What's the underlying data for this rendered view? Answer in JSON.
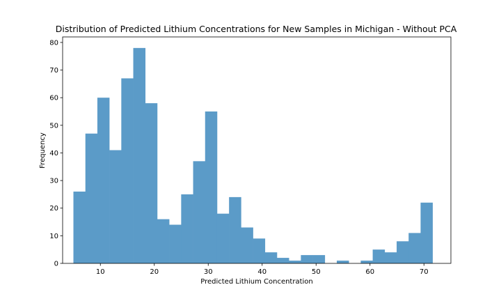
{
  "chart_data": {
    "type": "bar",
    "subtype": "histogram",
    "title": "Distribution of Predicted Lithium Concentrations for New Samples in Michigan - Without PCA",
    "xlabel": "Predicted Lithium Concentration",
    "ylabel": "Frequency",
    "xlim": [
      3,
      75
    ],
    "ylim": [
      0,
      82
    ],
    "xticks": [
      10,
      20,
      30,
      40,
      50,
      60,
      70
    ],
    "yticks": [
      0,
      10,
      20,
      30,
      40,
      50,
      60,
      70,
      80
    ],
    "grid": false,
    "legend": "none",
    "bar_color": "#5b9bc8",
    "bin_edges": [
      5.0,
      7.22,
      9.44,
      11.66,
      13.88,
      16.1,
      18.32,
      20.54,
      22.76,
      24.98,
      27.2,
      29.42,
      31.64,
      33.86,
      36.08,
      38.3,
      40.52,
      42.74,
      44.96,
      47.18,
      49.4,
      51.62,
      53.84,
      56.06,
      58.28,
      60.5,
      62.72,
      64.94,
      67.16,
      69.38,
      71.6
    ],
    "values": [
      26,
      47,
      60,
      41,
      67,
      78,
      58,
      16,
      14,
      25,
      37,
      55,
      18,
      24,
      13,
      9,
      4,
      2,
      1,
      3,
      3,
      0,
      1,
      0,
      1,
      5,
      4,
      8,
      11,
      22
    ]
  }
}
